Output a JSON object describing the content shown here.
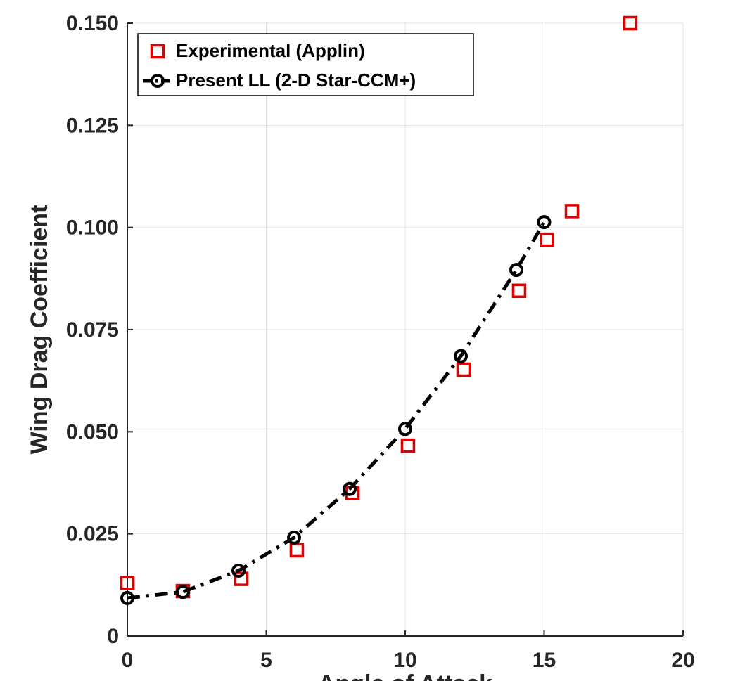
{
  "chart_data": {
    "type": "line",
    "ylabel": "Wing Drag Coefficient",
    "xlabel": "Angle of Attack",
    "xlim": [
      0,
      20
    ],
    "xticks": [
      0,
      5,
      10,
      15,
      20
    ],
    "ylim": [
      0,
      0.15
    ],
    "yticks": [
      0,
      {
        "value": 0.025,
        "label": "0.025"
      },
      {
        "value": 0.05,
        "label": "0.050"
      },
      {
        "value": 0.075,
        "label": "0.075"
      },
      {
        "value": 0.1,
        "label": "0.100"
      },
      {
        "value": 0.125,
        "label": "0.125"
      },
      {
        "value": 0.15,
        "label": "0.150"
      }
    ],
    "grid": true,
    "legend": "upper left",
    "series": [
      {
        "name": "Experimental (Applin)",
        "color": "#e00000",
        "marker": "square",
        "line": "none",
        "x": [
          0,
          2,
          4.1,
          6.1,
          8.1,
          10.1,
          12.1,
          14.1,
          15.1,
          16,
          18.1
        ],
        "values": [
          0.013,
          0.011,
          0.014,
          0.021,
          0.035,
          0.0466,
          0.0652,
          0.0845,
          0.097,
          0.104,
          0.15
        ]
      },
      {
        "name": "Present LL (2-D Star-CCM+)",
        "color": "#000000",
        "marker": "circle",
        "line": "dashdot",
        "x": [
          0,
          2,
          4,
          6,
          8,
          10,
          12,
          14,
          15
        ],
        "values": [
          0.0093,
          0.0108,
          0.016,
          0.0241,
          0.036,
          0.0507,
          0.0685,
          0.0896,
          0.1013
        ]
      }
    ]
  }
}
